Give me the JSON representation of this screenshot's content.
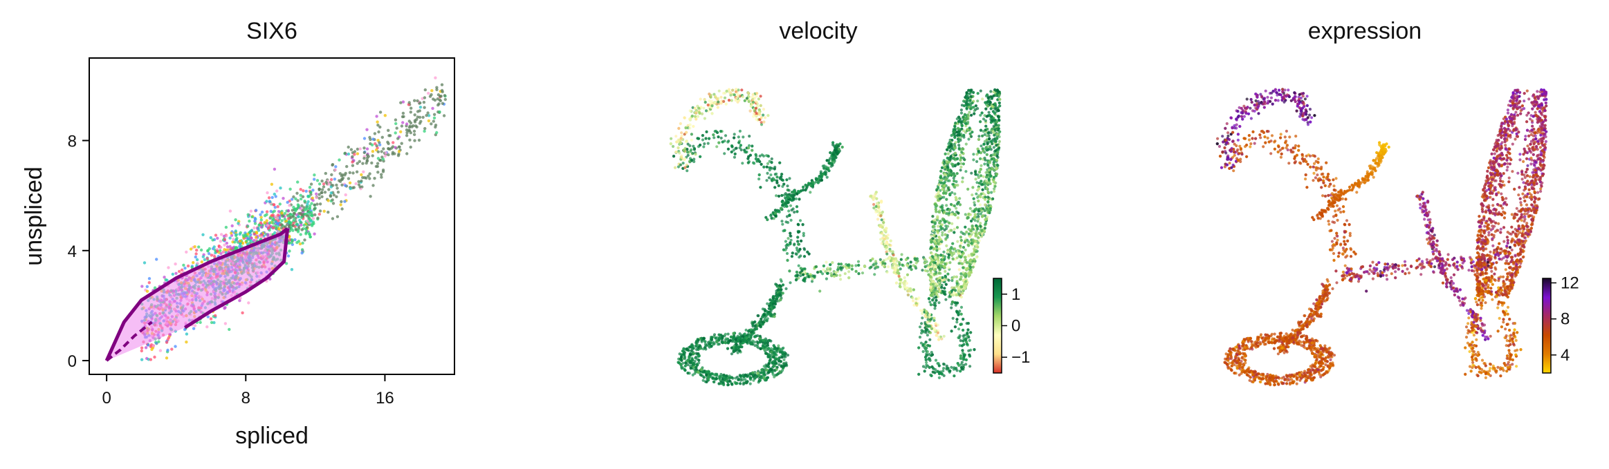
{
  "chart_data": [
    {
      "type": "scatter",
      "title": "SIX6",
      "xlabel": "spliced",
      "ylabel": "unspliced",
      "xlim": [
        -1,
        20
      ],
      "ylim": [
        -0.5,
        11
      ],
      "xticks": [
        0,
        8,
        16
      ],
      "yticks": [
        0,
        4,
        8
      ],
      "grid": false,
      "point_colors": [
        "#ff4d6d",
        "#33d17a",
        "#4a8cff",
        "#22c3c3",
        "#f2c200",
        "#c04fd6",
        "#ff9fd6",
        "#5d7f5d",
        "#7a6fb0",
        "#2e7d32"
      ],
      "fit_curve_color": "#800080",
      "fit_fill_color": "#ee88ee",
      "fit_curve": {
        "upper": [
          [
            0,
            0
          ],
          [
            1,
            1.4
          ],
          [
            2,
            2.2
          ],
          [
            4,
            3.0
          ],
          [
            6,
            3.6
          ],
          [
            8,
            4.1
          ],
          [
            10,
            4.6
          ],
          [
            10.4,
            4.8
          ]
        ],
        "lower": [
          [
            10.4,
            4.8
          ],
          [
            10.2,
            3.6
          ],
          [
            9.2,
            3.0
          ],
          [
            8,
            2.5
          ],
          [
            6,
            1.8
          ],
          [
            4.5,
            1.2
          ]
        ],
        "dashed": [
          [
            0,
            0
          ],
          [
            0.8,
            0.4
          ],
          [
            1.6,
            0.9
          ],
          [
            2.6,
            1.4
          ]
        ]
      }
    },
    {
      "type": "scatter",
      "title": "velocity",
      "colorbar": {
        "ticks": [
          1,
          0,
          -1
        ],
        "tick_labels": [
          "1",
          "0",
          "−1"
        ],
        "range": [
          -1.5,
          1.5
        ]
      },
      "colormap": [
        "#d73027",
        "#fee08b",
        "#ffffbf",
        "#a6d96a",
        "#1a9850",
        "#006837"
      ]
    },
    {
      "type": "scatter",
      "title": "expression",
      "colorbar": {
        "ticks": [
          12,
          8,
          4
        ],
        "tick_labels": [
          "12",
          "8",
          "4"
        ],
        "range": [
          2,
          12.5
        ]
      },
      "colormap": [
        "#ffd700",
        "#e07b00",
        "#c84a00",
        "#a72a60",
        "#7b10d0",
        "#1a0a2a"
      ]
    }
  ]
}
